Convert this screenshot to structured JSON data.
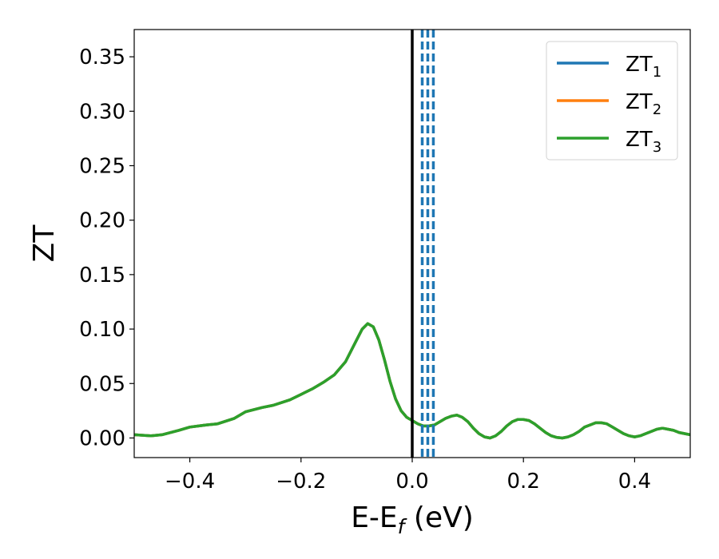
{
  "chart_data": {
    "type": "line",
    "xlabel": "E-E",
    "xlabel_subscript": "f",
    "xlabel_unit": " (eV)",
    "ylabel": "ZT",
    "xlim": [
      -0.5,
      0.5
    ],
    "ylim": [
      -0.018,
      0.375
    ],
    "xticks": [
      -0.4,
      -0.2,
      0.0,
      0.2,
      0.4
    ],
    "xtick_labels": [
      "−0.4",
      "−0.2",
      "0.0",
      "0.2",
      "0.4"
    ],
    "yticks": [
      0.0,
      0.05,
      0.1,
      0.15,
      0.2,
      0.25,
      0.3,
      0.35
    ],
    "ytick_labels": [
      "0.00",
      "0.05",
      "0.10",
      "0.15",
      "0.20",
      "0.25",
      "0.30",
      "0.35"
    ],
    "legend_position": "top-right",
    "grid": false,
    "x": [
      -0.5,
      -0.47,
      -0.45,
      -0.42,
      -0.4,
      -0.37,
      -0.35,
      -0.32,
      -0.3,
      -0.27,
      -0.25,
      -0.22,
      -0.2,
      -0.18,
      -0.16,
      -0.14,
      -0.12,
      -0.1,
      -0.09,
      -0.08,
      -0.07,
      -0.06,
      -0.05,
      -0.04,
      -0.03,
      -0.02,
      -0.01,
      0.0,
      0.01,
      0.02,
      0.03,
      0.04,
      0.05,
      0.06,
      0.07,
      0.08,
      0.09,
      0.1,
      0.11,
      0.12,
      0.13,
      0.14,
      0.15,
      0.16,
      0.17,
      0.18,
      0.19,
      0.2,
      0.21,
      0.22,
      0.23,
      0.24,
      0.25,
      0.26,
      0.27,
      0.28,
      0.29,
      0.3,
      0.31,
      0.32,
      0.33,
      0.34,
      0.35,
      0.36,
      0.37,
      0.38,
      0.39,
      0.4,
      0.41,
      0.42,
      0.43,
      0.44,
      0.45,
      0.46,
      0.47,
      0.48,
      0.49,
      0.5
    ],
    "series": [
      {
        "name": "ZT",
        "sub": "1",
        "color": "#1f77b4",
        "values": [
          0.003,
          0.002,
          0.003,
          0.007,
          0.01,
          0.012,
          0.013,
          0.018,
          0.024,
          0.028,
          0.03,
          0.035,
          0.04,
          0.045,
          0.051,
          0.058,
          0.07,
          0.09,
          0.1,
          0.105,
          0.102,
          0.09,
          0.072,
          0.052,
          0.036,
          0.025,
          0.019,
          0.016,
          0.013,
          0.011,
          0.011,
          0.012,
          0.015,
          0.018,
          0.02,
          0.021,
          0.019,
          0.015,
          0.009,
          0.004,
          0.001,
          0.0,
          0.002,
          0.006,
          0.011,
          0.015,
          0.017,
          0.017,
          0.016,
          0.013,
          0.009,
          0.005,
          0.002,
          0.0005,
          0.0,
          0.001,
          0.003,
          0.006,
          0.01,
          0.012,
          0.014,
          0.014,
          0.013,
          0.01,
          0.007,
          0.004,
          0.002,
          0.001,
          0.002,
          0.004,
          0.006,
          0.008,
          0.009,
          0.008,
          0.007,
          0.005,
          0.004,
          0.003
        ]
      },
      {
        "name": "ZT",
        "sub": "2",
        "color": "#ff7f0e",
        "values": [
          0.003,
          0.002,
          0.003,
          0.007,
          0.01,
          0.012,
          0.013,
          0.018,
          0.024,
          0.028,
          0.03,
          0.035,
          0.04,
          0.045,
          0.051,
          0.058,
          0.07,
          0.09,
          0.1,
          0.105,
          0.102,
          0.09,
          0.072,
          0.052,
          0.036,
          0.025,
          0.019,
          0.016,
          0.013,
          0.011,
          0.011,
          0.012,
          0.015,
          0.018,
          0.02,
          0.021,
          0.019,
          0.015,
          0.009,
          0.004,
          0.001,
          0.0,
          0.002,
          0.006,
          0.011,
          0.015,
          0.017,
          0.017,
          0.016,
          0.013,
          0.009,
          0.005,
          0.002,
          0.0005,
          0.0,
          0.001,
          0.003,
          0.006,
          0.01,
          0.012,
          0.014,
          0.014,
          0.013,
          0.01,
          0.007,
          0.004,
          0.002,
          0.001,
          0.002,
          0.004,
          0.006,
          0.008,
          0.009,
          0.008,
          0.007,
          0.005,
          0.004,
          0.003
        ]
      },
      {
        "name": "ZT",
        "sub": "3",
        "color": "#2ca02c",
        "values": [
          0.003,
          0.002,
          0.003,
          0.007,
          0.01,
          0.012,
          0.013,
          0.018,
          0.024,
          0.028,
          0.03,
          0.035,
          0.04,
          0.045,
          0.051,
          0.058,
          0.07,
          0.09,
          0.1,
          0.105,
          0.102,
          0.09,
          0.072,
          0.052,
          0.036,
          0.025,
          0.019,
          0.016,
          0.013,
          0.011,
          0.011,
          0.012,
          0.015,
          0.018,
          0.02,
          0.021,
          0.019,
          0.015,
          0.009,
          0.004,
          0.001,
          0.0,
          0.002,
          0.006,
          0.011,
          0.015,
          0.017,
          0.017,
          0.016,
          0.013,
          0.009,
          0.005,
          0.002,
          0.0005,
          0.0,
          0.001,
          0.003,
          0.006,
          0.01,
          0.012,
          0.014,
          0.014,
          0.013,
          0.01,
          0.007,
          0.004,
          0.002,
          0.001,
          0.002,
          0.004,
          0.006,
          0.008,
          0.009,
          0.008,
          0.007,
          0.005,
          0.004,
          0.003
        ]
      }
    ],
    "vertical_lines": [
      {
        "x": 0.0,
        "style": "solid",
        "color": "#000000"
      },
      {
        "x": 0.018,
        "style": "dashed",
        "color": "#1f77b4"
      },
      {
        "x": 0.028,
        "style": "dashed",
        "color": "#1f77b4"
      },
      {
        "x": 0.038,
        "style": "dashed",
        "color": "#1f77b4"
      }
    ]
  }
}
